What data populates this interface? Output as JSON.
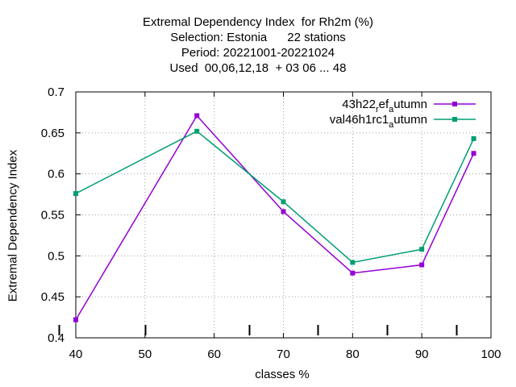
{
  "title_lines": [
    "Extremal Dependency Index  for Rh2m (%)",
    "Selection: Estonia      22 stations",
    "Period: 20221001-20221024",
    "Used  00,06,12,18  + 03 06 ... 48"
  ],
  "chart_data": {
    "type": "line",
    "xlabel": "classes %",
    "ylabel": "Extremal Dependency Index",
    "xlim": [
      40,
      100
    ],
    "ylim": [
      0.4,
      0.7
    ],
    "xticks": [
      40,
      50,
      60,
      70,
      80,
      90,
      100
    ],
    "yticks": [
      0.4,
      0.45,
      0.5,
      0.55,
      0.6,
      0.65,
      0.7
    ],
    "xtick_labels": [
      "40",
      "50",
      "60",
      "70",
      "80",
      "90",
      "100"
    ],
    "ytick_labels": [
      "0.4",
      "0.45",
      "0.5",
      "0.55",
      "0.6",
      "0.65",
      "0.7"
    ],
    "grid": true,
    "legend_position": "top-right",
    "bottom_markers_x": [
      37.5,
      50,
      65,
      75,
      85,
      95
    ],
    "series": [
      {
        "name": "43h22_ref_autumn",
        "legend_main": "43h22",
        "legend_parts": [
          {
            "text": "43h22",
            "sub": false
          },
          {
            "text": "r",
            "sub": true
          },
          {
            "text": "ef",
            "sub": false
          },
          {
            "text": "a",
            "sub": true
          },
          {
            "text": "utumn",
            "sub": false
          }
        ],
        "color": "#9400d3",
        "x": [
          40,
          57.5,
          70,
          80,
          90,
          97.5
        ],
        "values": [
          0.422,
          0.671,
          0.554,
          0.479,
          0.489,
          0.625
        ]
      },
      {
        "name": "val46h1rc1_autumn",
        "legend_parts": [
          {
            "text": "val46h1rc1",
            "sub": false
          },
          {
            "text": "a",
            "sub": true
          },
          {
            "text": "utumn",
            "sub": false
          }
        ],
        "color": "#009e73",
        "x": [
          40,
          57.5,
          70,
          80,
          90,
          97.5
        ],
        "values": [
          0.576,
          0.652,
          0.566,
          0.492,
          0.508,
          0.643
        ]
      }
    ]
  }
}
